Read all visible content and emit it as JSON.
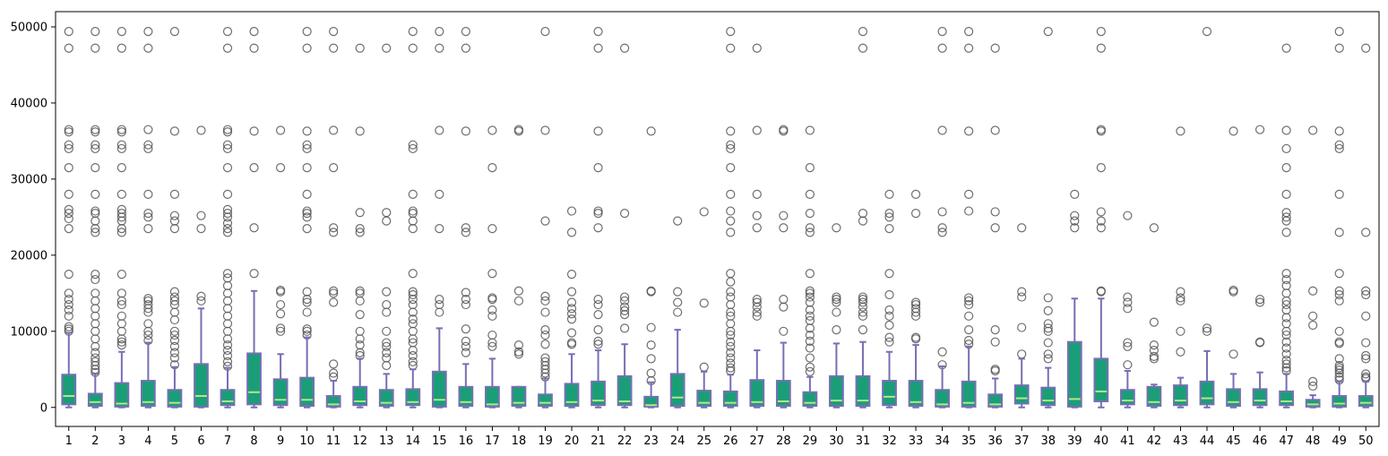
{
  "chart_data": {
    "type": "box",
    "title": "",
    "xlabel": "",
    "ylabel": "",
    "ylim": [
      -2500,
      52000
    ],
    "yticks": [
      0,
      10000,
      20000,
      30000,
      40000,
      50000
    ],
    "ytick_labels": [
      "0",
      "10000",
      "20000",
      "30000",
      "40000",
      "50000"
    ],
    "grid": false,
    "colors": {
      "box_fill": "#1a9e77",
      "box_edge": "#7570b3",
      "median": "#b3e68a",
      "flier_edge": "#555555"
    },
    "categories": [
      "1",
      "2",
      "3",
      "4",
      "5",
      "6",
      "7",
      "8",
      "9",
      "10",
      "11",
      "12",
      "13",
      "14",
      "15",
      "16",
      "17",
      "18",
      "19",
      "20",
      "21",
      "22",
      "23",
      "24",
      "25",
      "26",
      "27",
      "28",
      "29",
      "30",
      "31",
      "32",
      "33",
      "34",
      "35",
      "36",
      "37",
      "38",
      "39",
      "40",
      "41",
      "42",
      "43",
      "44",
      "45",
      "46",
      "47",
      "48",
      "49",
      "50"
    ],
    "boxes": [
      {
        "q1": 400,
        "median": 1500,
        "q3": 4300,
        "wlo": 0,
        "whi": 9800,
        "fliers": [
          10000,
          10300,
          10600,
          12000,
          12800,
          13500,
          14200,
          15000,
          17500,
          23500,
          24800,
          25500,
          26000,
          28000,
          31500,
          34000,
          34500,
          36200,
          36500,
          47200,
          49400
        ]
      },
      {
        "q1": 200,
        "median": 700,
        "q3": 1800,
        "wlo": 0,
        "whi": 4400,
        "fliers": [
          4600,
          5000,
          5500,
          6000,
          6500,
          7200,
          8000,
          9000,
          10000,
          11000,
          12000,
          13000,
          14000,
          15000,
          16800,
          17500,
          23000,
          23500,
          24500,
          25500,
          25800,
          28000,
          31500,
          34000,
          34500,
          36200,
          36500,
          47200,
          49400
        ]
      },
      {
        "q1": 100,
        "median": 500,
        "q3": 3200,
        "wlo": 0,
        "whi": 7300,
        "fliers": [
          8200,
          8600,
          9000,
          10000,
          11000,
          12000,
          13500,
          14000,
          15000,
          17500,
          23000,
          23500,
          24500,
          25000,
          25500,
          26000,
          28000,
          31500,
          34000,
          34500,
          36200,
          36500,
          47200,
          49400
        ]
      },
      {
        "q1": 200,
        "median": 700,
        "q3": 3500,
        "wlo": 0,
        "whi": 8500,
        "fliers": [
          8800,
          9500,
          10000,
          11000,
          12500,
          13000,
          13500,
          14000,
          14300,
          23500,
          25000,
          25500,
          28000,
          34000,
          34500,
          36500,
          47200,
          49400
        ]
      },
      {
        "q1": 100,
        "median": 600,
        "q3": 2300,
        "wlo": 0,
        "whi": 5300,
        "fliers": [
          5600,
          6500,
          7200,
          8000,
          8800,
          9500,
          10000,
          11500,
          12500,
          13500,
          14000,
          14500,
          15200,
          23500,
          24500,
          25200,
          28000,
          36300,
          49400
        ]
      },
      {
        "q1": 100,
        "median": 1500,
        "q3": 5700,
        "wlo": 0,
        "whi": 13000,
        "fliers": [
          14000,
          14600,
          23500,
          25200,
          36400
        ]
      },
      {
        "q1": 300,
        "median": 800,
        "q3": 2300,
        "wlo": 0,
        "whi": 5200,
        "fliers": [
          5400,
          6000,
          6800,
          7500,
          8200,
          9000,
          10000,
          11000,
          12000,
          13000,
          14000,
          15000,
          16000,
          17000,
          17600,
          23000,
          23500,
          24200,
          25000,
          25500,
          26000,
          28000,
          31500,
          34000,
          34500,
          36200,
          36500,
          47200,
          49400
        ]
      },
      {
        "q1": 400,
        "median": 2000,
        "q3": 7100,
        "wlo": 0,
        "whi": 15300,
        "fliers": [
          17600,
          23600,
          31500,
          36300,
          47200,
          49400
        ]
      },
      {
        "q1": 300,
        "median": 1000,
        "q3": 3700,
        "wlo": 0,
        "whi": 7000,
        "fliers": [
          10000,
          10400,
          12300,
          13500,
          15200,
          15400,
          31500,
          36400
        ]
      },
      {
        "q1": 200,
        "median": 1000,
        "q3": 3900,
        "wlo": 0,
        "whi": 9200,
        "fliers": [
          9500,
          10000,
          10300,
          12500,
          13800,
          14200,
          15200,
          23500,
          25000,
          25500,
          25800,
          28000,
          31500,
          34000,
          34500,
          36300,
          47200,
          49400
        ]
      },
      {
        "q1": 100,
        "median": 400,
        "q3": 1500,
        "wlo": 0,
        "whi": 3500,
        "fliers": [
          4000,
          4500,
          5700,
          13800,
          15000,
          15300,
          23000,
          23600,
          31500,
          36400,
          47200,
          49400
        ]
      },
      {
        "q1": 300,
        "median": 800,
        "q3": 2700,
        "wlo": 0,
        "whi": 6400,
        "fliers": [
          6800,
          7200,
          8200,
          9000,
          10000,
          12200,
          14000,
          15000,
          15300,
          23000,
          23500,
          25600,
          36300,
          47200
        ]
      },
      {
        "q1": 200,
        "median": 600,
        "q3": 2300,
        "wlo": 0,
        "whi": 4400,
        "fliers": [
          5500,
          6500,
          7200,
          8000,
          8500,
          10000,
          12500,
          13500,
          15200,
          24500,
          25600,
          47200
        ]
      },
      {
        "q1": 300,
        "median": 700,
        "q3": 2400,
        "wlo": 0,
        "whi": 5000,
        "fliers": [
          5500,
          6000,
          6800,
          7500,
          8500,
          9000,
          10000,
          11000,
          11600,
          12500,
          13500,
          14200,
          14800,
          15200,
          17600,
          23500,
          24500,
          25500,
          25800,
          28000,
          34000,
          34500,
          47200,
          49400
        ]
      },
      {
        "q1": 100,
        "median": 1000,
        "q3": 4700,
        "wlo": 0,
        "whi": 10400,
        "fliers": [
          12500,
          13500,
          14200,
          23500,
          28000,
          36400,
          47200,
          49400
        ]
      },
      {
        "q1": 200,
        "median": 700,
        "q3": 2700,
        "wlo": 0,
        "whi": 5700,
        "fliers": [
          7200,
          8000,
          8700,
          10300,
          13500,
          14200,
          15100,
          23000,
          23600,
          36300,
          47200,
          49400
        ]
      },
      {
        "q1": 100,
        "median": 400,
        "q3": 2700,
        "wlo": 0,
        "whi": 6400,
        "fliers": [
          8000,
          8500,
          9500,
          12000,
          12800,
          14200,
          14400,
          17600,
          23500,
          31500,
          36400
        ]
      },
      {
        "q1": 200,
        "median": 600,
        "q3": 2700,
        "wlo": 0,
        "whi": 2700,
        "fliers": [
          7000,
          7300,
          8200,
          14000,
          15300,
          36300,
          36500
        ]
      },
      {
        "q1": 200,
        "median": 600,
        "q3": 1700,
        "wlo": 0,
        "whi": 3800,
        "fliers": [
          4000,
          4500,
          5000,
          5500,
          6000,
          6500,
          8300,
          9500,
          10200,
          12500,
          14000,
          14600,
          24500,
          36400,
          49400
        ]
      },
      {
        "q1": 200,
        "median": 700,
        "q3": 3100,
        "wlo": 0,
        "whi": 7000,
        "fliers": [
          8300,
          8500,
          9800,
          11600,
          12300,
          13000,
          13800,
          15200,
          17500,
          23000,
          25800
        ]
      },
      {
        "q1": 300,
        "median": 900,
        "q3": 3400,
        "wlo": 0,
        "whi": 7500,
        "fliers": [
          8300,
          8700,
          10200,
          12200,
          13500,
          14200,
          23600,
          25500,
          25800,
          31500,
          36300,
          47200,
          49400
        ]
      },
      {
        "q1": 300,
        "median": 800,
        "q3": 4100,
        "wlo": 0,
        "whi": 8300,
        "fliers": [
          10400,
          12200,
          12700,
          13200,
          14000,
          14500,
          25500,
          47200
        ]
      },
      {
        "q1": 100,
        "median": 300,
        "q3": 1400,
        "wlo": 0,
        "whi": 3300,
        "fliers": [
          3500,
          4500,
          6400,
          8200,
          10500,
          15200,
          15300,
          36300
        ]
      },
      {
        "q1": 200,
        "median": 1300,
        "q3": 4400,
        "wlo": 0,
        "whi": 10200,
        "fliers": [
          12500,
          13800,
          15200,
          24500
        ]
      },
      {
        "q1": 200,
        "median": 600,
        "q3": 2200,
        "wlo": 0,
        "whi": 4700,
        "fliers": [
          5300,
          13700,
          25700
        ]
      },
      {
        "q1": 200,
        "median": 600,
        "q3": 2100,
        "wlo": 0,
        "whi": 4300,
        "fliers": [
          4800,
          5200,
          5800,
          6500,
          7200,
          8000,
          8600,
          9500,
          10000,
          11000,
          12000,
          12500,
          13500,
          14500,
          15200,
          16500,
          17600,
          23000,
          24500,
          25800,
          28000,
          31500,
          34000,
          34500,
          36300,
          47200,
          49400
        ]
      },
      {
        "q1": 200,
        "median": 700,
        "q3": 3600,
        "wlo": 0,
        "whi": 7500,
        "fliers": [
          12000,
          12500,
          13200,
          13800,
          14200,
          23600,
          25200,
          28000,
          36400,
          47200
        ]
      },
      {
        "q1": 200,
        "median": 800,
        "q3": 3500,
        "wlo": 0,
        "whi": 8500,
        "fliers": [
          10000,
          13200,
          14200,
          23600,
          25200,
          36300,
          36500
        ]
      },
      {
        "q1": 200,
        "median": 600,
        "q3": 2000,
        "wlo": 0,
        "whi": 4000,
        "fliers": [
          4700,
          5300,
          6500,
          7800,
          8700,
          9500,
          10400,
          11400,
          12000,
          12800,
          13800,
          14500,
          15000,
          15300,
          17600,
          23000,
          23600,
          25500,
          28000,
          31500,
          36400
        ]
      },
      {
        "q1": 200,
        "median": 900,
        "q3": 4100,
        "wlo": 0,
        "whi": 8400,
        "fliers": [
          10200,
          12500,
          13800,
          14200,
          14500,
          23600
        ]
      },
      {
        "q1": 200,
        "median": 900,
        "q3": 4100,
        "wlo": 0,
        "whi": 8600,
        "fliers": [
          10200,
          12000,
          12500,
          13200,
          13800,
          14200,
          14500,
          24500,
          25500,
          47200,
          49400
        ]
      },
      {
        "q1": 300,
        "median": 1400,
        "q3": 3500,
        "wlo": 0,
        "whi": 7300,
        "fliers": [
          8600,
          9200,
          10800,
          12000,
          12800,
          14800,
          17600,
          23500,
          25000,
          25500,
          28000
        ]
      },
      {
        "q1": 200,
        "median": 700,
        "q3": 3500,
        "wlo": 0,
        "whi": 8200,
        "fliers": [
          9000,
          9200,
          12000,
          12500,
          13000,
          13500,
          13800,
          25500,
          28000
        ]
      },
      {
        "q1": 100,
        "median": 400,
        "q3": 2300,
        "wlo": 0,
        "whi": 5400,
        "fliers": [
          5600,
          7300,
          23000,
          23600,
          25700,
          36400,
          47200,
          49400
        ]
      },
      {
        "q1": 100,
        "median": 600,
        "q3": 3400,
        "wlo": 0,
        "whi": 8000,
        "fliers": [
          8300,
          8800,
          10200,
          12000,
          13500,
          14000,
          14400,
          25800,
          28000,
          36300,
          47200,
          49400
        ]
      },
      {
        "q1": 100,
        "median": 400,
        "q3": 1700,
        "wlo": 0,
        "whi": 3800,
        "fliers": [
          4800,
          5000,
          8600,
          10200,
          23600,
          25700,
          36400,
          47200
        ]
      },
      {
        "q1": 500,
        "median": 1200,
        "q3": 2900,
        "wlo": 0,
        "whi": 6400,
        "fliers": [
          7000,
          10500,
          14500,
          15200,
          23600
        ]
      },
      {
        "q1": 300,
        "median": 900,
        "q3": 2600,
        "wlo": 0,
        "whi": 5200,
        "fliers": [
          6400,
          7000,
          8500,
          10000,
          10400,
          11000,
          12700,
          14400,
          49400
        ]
      },
      {
        "q1": 100,
        "median": 1100,
        "q3": 8600,
        "wlo": 0,
        "whi": 14300,
        "fliers": [
          23600,
          24500,
          25200,
          28000
        ]
      },
      {
        "q1": 800,
        "median": 2100,
        "q3": 6400,
        "wlo": 0,
        "whi": 14300,
        "fliers": [
          15200,
          15300,
          23600,
          24500,
          25700,
          31500,
          36300,
          36500,
          47200,
          49400
        ]
      },
      {
        "q1": 400,
        "median": 900,
        "q3": 2300,
        "wlo": 0,
        "whi": 4800,
        "fliers": [
          5600,
          8000,
          8500,
          13000,
          13800,
          14500,
          25200
        ]
      },
      {
        "q1": 200,
        "median": 700,
        "q3": 2700,
        "wlo": 0,
        "whi": 3000,
        "fliers": [
          6400,
          6700,
          7500,
          8200,
          11200,
          23600
        ]
      },
      {
        "q1": 300,
        "median": 900,
        "q3": 2900,
        "wlo": 0,
        "whi": 3900,
        "fliers": [
          7300,
          10000,
          14000,
          14400,
          15200,
          36300
        ]
      },
      {
        "q1": 400,
        "median": 1200,
        "q3": 3400,
        "wlo": 0,
        "whi": 7400,
        "fliers": [
          10000,
          10400,
          49400
        ]
      },
      {
        "q1": 200,
        "median": 700,
        "q3": 2400,
        "wlo": 0,
        "whi": 4400,
        "fliers": [
          7000,
          15200,
          15400,
          36300
        ]
      },
      {
        "q1": 300,
        "median": 900,
        "q3": 2400,
        "wlo": 0,
        "whi": 4600,
        "fliers": [
          8500,
          8600,
          13800,
          14200,
          36500
        ]
      },
      {
        "q1": 300,
        "median": 800,
        "q3": 2100,
        "wlo": 0,
        "whi": 4400,
        "fliers": [
          4800,
          5200,
          5700,
          6200,
          7000,
          7800,
          8600,
          9500,
          10000,
          11000,
          11800,
          12800,
          13500,
          14000,
          15000,
          16000,
          16800,
          17600,
          23000,
          24500,
          25000,
          25600,
          28000,
          31500,
          34000,
          36400,
          47200
        ]
      },
      {
        "q1": 100,
        "median": 400,
        "q3": 1000,
        "wlo": 0,
        "whi": 1600,
        "fliers": [
          2800,
          3400,
          10800,
          12000,
          15300,
          36400
        ]
      },
      {
        "q1": 100,
        "median": 500,
        "q3": 1500,
        "wlo": 0,
        "whi": 3400,
        "fliers": [
          3600,
          4000,
          4500,
          4900,
          5200,
          5500,
          6400,
          8400,
          8600,
          10000,
          14000,
          14800,
          15300,
          17600,
          23000,
          28000,
          34000,
          34500,
          36300,
          47200,
          49400
        ]
      },
      {
        "q1": 200,
        "median": 600,
        "q3": 1500,
        "wlo": 0,
        "whi": 3400,
        "fliers": [
          3800,
          4000,
          4400,
          6400,
          6800,
          8500,
          12000,
          14800,
          15300,
          23000,
          47200
        ]
      }
    ]
  }
}
